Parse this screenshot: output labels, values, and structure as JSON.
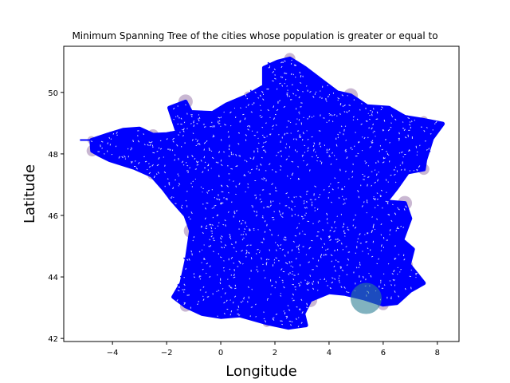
{
  "chart_data": {
    "type": "scatter",
    "title": "Minimum Spanning Tree of the cities whose population is greater or equal to",
    "xlabel": "Longitude",
    "ylabel": "Latitude",
    "xlim": [
      -5.8,
      8.8
    ],
    "ylim": [
      41.9,
      51.5
    ],
    "xticks": [
      -4,
      -2,
      0,
      2,
      4,
      6,
      8
    ],
    "xtick_labels": [
      "−4",
      "−2",
      "0",
      "2",
      "4",
      "6",
      "8"
    ],
    "yticks": [
      42,
      44,
      46,
      48,
      50
    ],
    "ytick_labels": [
      "42",
      "44",
      "46",
      "48",
      "50"
    ],
    "grid": false,
    "edge_color": "#0000ff",
    "city_color": "#4b0f6b",
    "highlight_color": "#2f7f96",
    "outline": [
      [
        -4.78,
        48.45
      ],
      [
        -4.2,
        48.62
      ],
      [
        -3.6,
        48.78
      ],
      [
        -3.0,
        48.82
      ],
      [
        -2.5,
        48.62
      ],
      [
        -2.0,
        48.64
      ],
      [
        -1.6,
        48.7
      ],
      [
        -1.9,
        49.5
      ],
      [
        -1.3,
        49.7
      ],
      [
        -1.1,
        49.36
      ],
      [
        -0.3,
        49.33
      ],
      [
        0.2,
        49.6
      ],
      [
        1.0,
        49.9
      ],
      [
        1.6,
        50.2
      ],
      [
        1.6,
        50.8
      ],
      [
        2.1,
        51.0
      ],
      [
        2.55,
        51.1
      ],
      [
        3.1,
        50.8
      ],
      [
        3.7,
        50.4
      ],
      [
        4.3,
        50.0
      ],
      [
        4.8,
        49.9
      ],
      [
        5.4,
        49.55
      ],
      [
        6.2,
        49.5
      ],
      [
        6.8,
        49.2
      ],
      [
        7.5,
        49.1
      ],
      [
        8.2,
        48.98
      ],
      [
        7.8,
        48.5
      ],
      [
        7.55,
        47.8
      ],
      [
        7.5,
        47.5
      ],
      [
        6.9,
        47.4
      ],
      [
        6.5,
        46.9
      ],
      [
        6.1,
        46.45
      ],
      [
        6.8,
        46.4
      ],
      [
        7.0,
        45.9
      ],
      [
        6.7,
        45.2
      ],
      [
        7.1,
        44.9
      ],
      [
        6.95,
        44.4
      ],
      [
        7.5,
        43.8
      ],
      [
        7.0,
        43.55
      ],
      [
        6.5,
        43.15
      ],
      [
        6.0,
        43.1
      ],
      [
        5.3,
        43.3
      ],
      [
        4.6,
        43.45
      ],
      [
        4.0,
        43.5
      ],
      [
        3.3,
        43.25
      ],
      [
        3.05,
        42.8
      ],
      [
        3.15,
        42.43
      ],
      [
        2.5,
        42.35
      ],
      [
        1.7,
        42.5
      ],
      [
        0.7,
        42.75
      ],
      [
        0.0,
        42.7
      ],
      [
        -0.7,
        42.8
      ],
      [
        -1.3,
        43.05
      ],
      [
        -1.75,
        43.35
      ],
      [
        -1.45,
        43.8
      ],
      [
        -1.25,
        44.6
      ],
      [
        -1.1,
        45.5
      ],
      [
        -1.3,
        46.0
      ],
      [
        -1.8,
        46.5
      ],
      [
        -2.1,
        46.85
      ],
      [
        -2.55,
        47.3
      ],
      [
        -3.2,
        47.55
      ],
      [
        -4.1,
        47.8
      ],
      [
        -4.45,
        47.95
      ],
      [
        -4.75,
        48.1
      ],
      [
        -4.78,
        48.45
      ]
    ],
    "highlight_city": {
      "lon": 5.37,
      "lat": 43.3
    }
  }
}
